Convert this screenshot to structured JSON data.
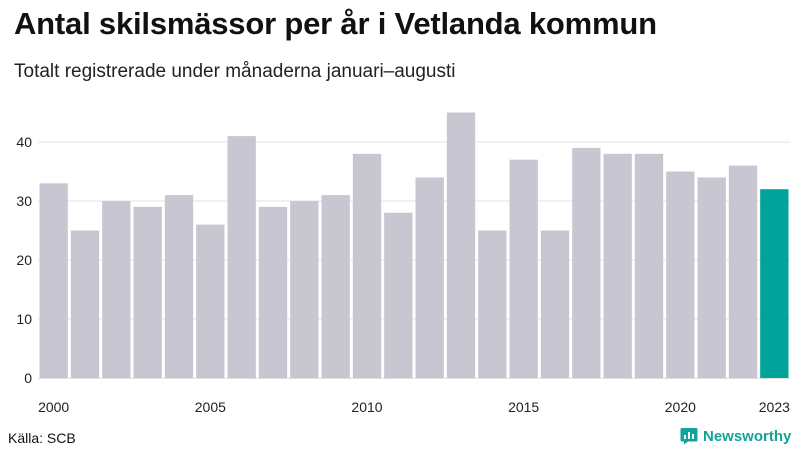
{
  "title": "Antal skilsmässor per år i Vetlanda kommun",
  "subtitle": "Totalt registrerade under månaderna januari–augusti",
  "source": "Källa: SCB",
  "brand": "Newsworthy",
  "colors": {
    "bar": "#c8c7d1",
    "highlight": "#00a39a",
    "grid": "#e3e3e3",
    "brand": "#14a39a"
  },
  "chart_data": {
    "type": "bar",
    "title": "Antal skilsmässor per år i Vetlanda kommun",
    "subtitle": "Totalt registrerade under månaderna januari–augusti",
    "xlabel": "",
    "ylabel": "",
    "categories": [
      "2000",
      "2001",
      "2002",
      "2003",
      "2004",
      "2005",
      "2006",
      "2007",
      "2008",
      "2009",
      "2010",
      "2011",
      "2012",
      "2013",
      "2014",
      "2015",
      "2016",
      "2017",
      "2018",
      "2019",
      "2020",
      "2021",
      "2022",
      "2023"
    ],
    "values": [
      33,
      25,
      30,
      29,
      31,
      26,
      41,
      29,
      30,
      31,
      38,
      28,
      34,
      45,
      25,
      37,
      25,
      39,
      38,
      38,
      35,
      34,
      36,
      32
    ],
    "highlight_category": "2023",
    "ylim": [
      0,
      47
    ],
    "yticks": [
      0,
      10,
      20,
      30,
      40
    ],
    "xtick_labels": [
      "2000",
      "2005",
      "2010",
      "2015",
      "2020",
      "2023"
    ],
    "grid": true
  }
}
